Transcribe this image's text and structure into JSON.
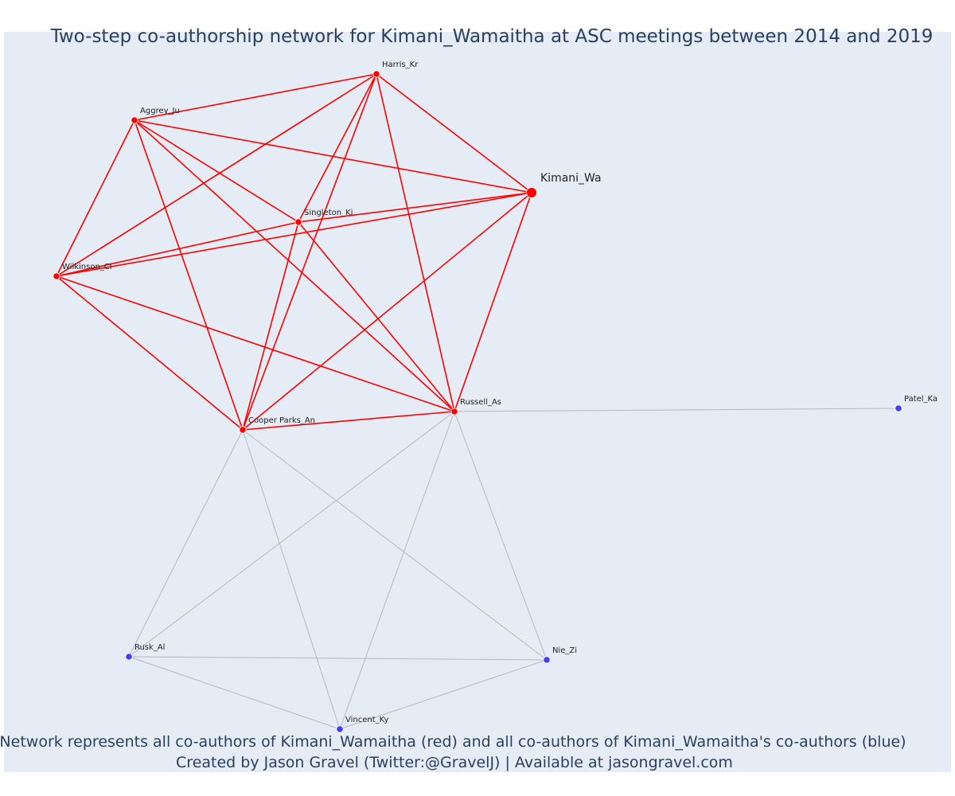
{
  "title": "Two-step co-authorship network for Kimani_Wamaitha at ASC meetings between 2014 and 2019",
  "caption": {
    "line1": "Network represents all co-authors of Kimani_Wamaitha (red) and all co-authors of Kimani_Wamaitha's co-authors (blue)",
    "line2": "Created by Jason Gravel (Twitter:@GravelJ) | Available at jasongravel.com"
  },
  "colors": {
    "background": "#e5ecf6",
    "direct": "#ff0000",
    "indirect": "#3f3ff0",
    "indirect_edge": "#b4b8c8"
  },
  "nodes": [
    {
      "id": "Kimani_Wa",
      "group": "focal"
    },
    {
      "id": "Harris_Kr",
      "group": "direct"
    },
    {
      "id": "Aggrey_Ju",
      "group": "direct"
    },
    {
      "id": "Singleton_Ki",
      "group": "direct"
    },
    {
      "id": "Wilkinson_Cl",
      "group": "direct"
    },
    {
      "id": "Russell_As",
      "group": "direct"
    },
    {
      "id": "Cooper Parks_An",
      "group": "direct"
    },
    {
      "id": "Patel_Ka",
      "group": "indirect"
    },
    {
      "id": "Rusk_Al",
      "group": "indirect"
    },
    {
      "id": "Nie_Zi",
      "group": "indirect"
    },
    {
      "id": "Vincent_Ky",
      "group": "indirect"
    }
  ],
  "edges": [
    [
      "Harris_Kr",
      "Aggrey_Ju",
      "direct"
    ],
    [
      "Harris_Kr",
      "Kimani_Wa",
      "direct"
    ],
    [
      "Harris_Kr",
      "Wilkinson_Cl",
      "direct"
    ],
    [
      "Harris_Kr",
      "Cooper Parks_An",
      "direct"
    ],
    [
      "Harris_Kr",
      "Singleton_Ki",
      "direct"
    ],
    [
      "Harris_Kr",
      "Russell_As",
      "direct"
    ],
    [
      "Aggrey_Ju",
      "Kimani_Wa",
      "direct"
    ],
    [
      "Aggrey_Ju",
      "Wilkinson_Cl",
      "direct"
    ],
    [
      "Aggrey_Ju",
      "Singleton_Ki",
      "direct"
    ],
    [
      "Aggrey_Ju",
      "Cooper Parks_An",
      "direct"
    ],
    [
      "Aggrey_Ju",
      "Russell_As",
      "direct"
    ],
    [
      "Singleton_Ki",
      "Kimani_Wa",
      "direct"
    ],
    [
      "Singleton_Ki",
      "Wilkinson_Cl",
      "direct"
    ],
    [
      "Singleton_Ki",
      "Cooper Parks_An",
      "direct"
    ],
    [
      "Singleton_Ki",
      "Russell_As",
      "direct"
    ],
    [
      "Wilkinson_Cl",
      "Kimani_Wa",
      "direct"
    ],
    [
      "Wilkinson_Cl",
      "Cooper Parks_An",
      "direct"
    ],
    [
      "Wilkinson_Cl",
      "Russell_As",
      "direct"
    ],
    [
      "Kimani_Wa",
      "Cooper Parks_An",
      "direct"
    ],
    [
      "Kimani_Wa",
      "Russell_As",
      "direct"
    ],
    [
      "Cooper Parks_An",
      "Russell_As",
      "direct"
    ],
    [
      "Russell_As",
      "Patel_Ka",
      "indirect"
    ],
    [
      "Russell_As",
      "Rusk_Al",
      "indirect"
    ],
    [
      "Russell_As",
      "Vincent_Ky",
      "indirect"
    ],
    [
      "Russell_As",
      "Nie_Zi",
      "indirect"
    ],
    [
      "Cooper Parks_An",
      "Rusk_Al",
      "indirect"
    ],
    [
      "Cooper Parks_An",
      "Vincent_Ky",
      "indirect"
    ],
    [
      "Cooper Parks_An",
      "Nie_Zi",
      "indirect"
    ],
    [
      "Rusk_Al",
      "Nie_Zi",
      "indirect"
    ],
    [
      "Rusk_Al",
      "Vincent_Ky",
      "indirect"
    ],
    [
      "Vincent_Ky",
      "Nie_Zi",
      "indirect"
    ]
  ]
}
